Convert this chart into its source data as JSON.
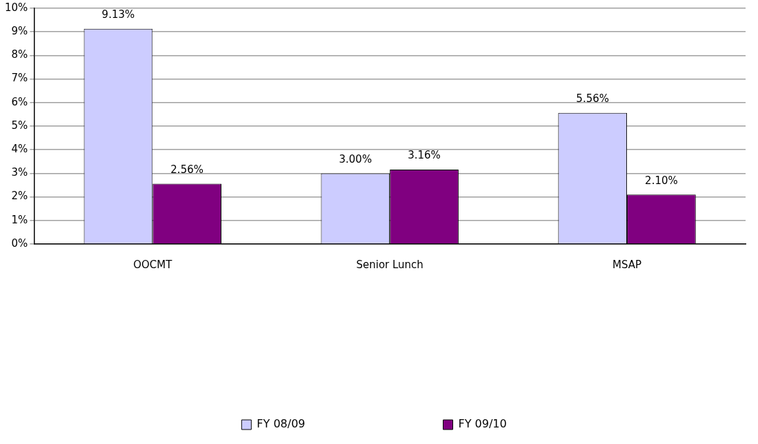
{
  "chart_data": {
    "type": "bar",
    "categories": [
      "OOCMT",
      "Senior Lunch",
      "MSAP"
    ],
    "series": [
      {
        "name": "FY 08/09",
        "color": "#ccccff",
        "values": [
          9.13,
          3.0,
          5.56
        ],
        "value_labels": [
          "9.13%",
          "3.00%",
          "5.56%"
        ]
      },
      {
        "name": "FY 09/10",
        "color": "#800080",
        "values": [
          2.56,
          3.16,
          2.1
        ],
        "value_labels": [
          "2.56%",
          "3.16%",
          "2.10%"
        ]
      }
    ],
    "ylim": [
      0,
      10
    ],
    "yticks": [
      {
        "value": 0,
        "label": "0%"
      },
      {
        "value": 1,
        "label": "1%"
      },
      {
        "value": 2,
        "label": "2%"
      },
      {
        "value": 3,
        "label": "3%"
      },
      {
        "value": 4,
        "label": "4%"
      },
      {
        "value": 5,
        "label": "5%"
      },
      {
        "value": 6,
        "label": "6%"
      },
      {
        "value": 7,
        "label": "7%"
      },
      {
        "value": 8,
        "label": "8%"
      },
      {
        "value": 9,
        "label": "9%"
      },
      {
        "value": 10,
        "label": "10%"
      }
    ],
    "grid": "y",
    "legend": "bottom"
  }
}
